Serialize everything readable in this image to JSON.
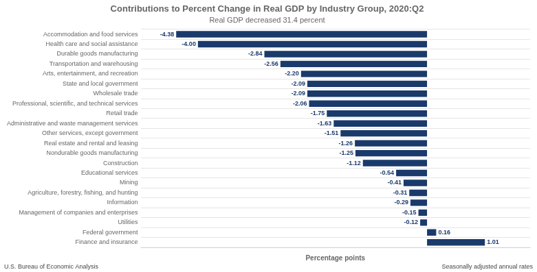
{
  "chart_data": {
    "type": "bar",
    "orientation": "horizontal",
    "title": "Contributions to Percent Change in Real GDP by Industry Group, 2020:Q2",
    "subtitle": "Real GDP decreased 31.4 percent",
    "xlabel": "Percentage points",
    "annotations": [
      "U.S. Bureau of Economic Analysis",
      "Seasonally adjusted annual rates"
    ],
    "categories": [
      "Finance and insurance",
      "Federal government",
      "Utilities",
      "Management of companies and enterprises",
      "Information",
      "Agriculture, forestry, fishing, and hunting",
      "Mining",
      "Educational services",
      "Construction",
      "Nondurable goods manufacturing",
      "Real estate and rental and leasing",
      "Other services, except government",
      "Administrative and waste management services",
      "Retail trade",
      "Professional, scientific, and technical services",
      "Wholesale trade",
      "State and local government",
      "Arts, entertainment, and recreation",
      "Transportation and warehousing",
      "Durable goods manufacturing",
      "Health care and social assistance",
      "Accommodation and food services"
    ],
    "values": [
      1.01,
      0.16,
      -0.12,
      -0.15,
      -0.29,
      -0.31,
      -0.41,
      -0.54,
      -1.12,
      -1.25,
      -1.26,
      -1.51,
      -1.63,
      -1.75,
      -2.06,
      -2.09,
      -2.09,
      -2.2,
      -2.56,
      -2.84,
      -4.0,
      -4.38
    ],
    "value_labels": [
      "1.01",
      "0.16",
      "-0.12",
      "-0.15",
      "-0.29",
      "-0.31",
      "-0.41",
      "-0.54",
      "-1.12",
      "-1.25",
      "-1.26",
      "-1.51",
      "-1.63",
      "-1.75",
      "-2.06",
      "-2.09",
      "-2.09",
      "-2.20",
      "-2.56",
      "-2.84",
      "-4.00",
      "-4.38"
    ],
    "color": "#1a3a6b",
    "xlim": [
      -5.0,
      1.8
    ],
    "grid": true,
    "data_labels": true,
    "tick_labels": "y"
  }
}
